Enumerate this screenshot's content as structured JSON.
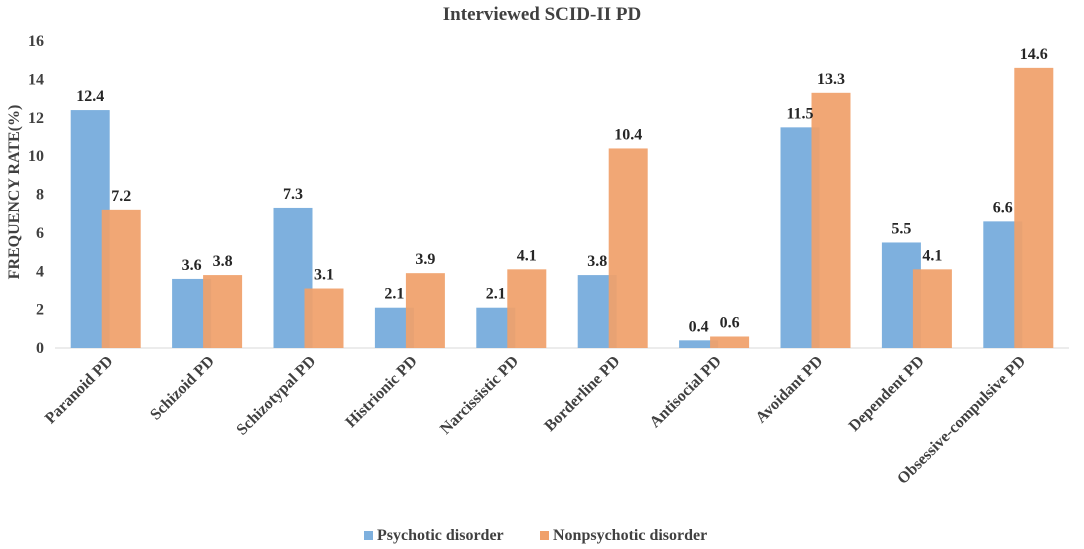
{
  "chart_data": {
    "type": "bar",
    "title": "Interviewed SCID-II PD",
    "xlabel": "",
    "ylabel": "FREQUENCY RATE(%)",
    "ylim": [
      0,
      16
    ],
    "yticks": [
      0,
      2,
      4,
      6,
      8,
      10,
      12,
      14,
      16
    ],
    "ytick_labels": [
      "0",
      "2",
      "4",
      "6",
      "8",
      "10",
      "12",
      "14",
      "16"
    ],
    "grid": false,
    "legend_position": "bottom-center",
    "categories": [
      "Paranoid PD",
      "Schizoid PD",
      "Schizotypal PD",
      "Histrionic PD",
      "Narcissistic PD",
      "Borderline PD",
      "Antisocial PD",
      "Avoidant PD",
      "Dependent PD",
      "Obsessive-compulsive PD"
    ],
    "series": [
      {
        "name": "Psychotic disorder",
        "color": "#7EB0DE",
        "values": [
          12.4,
          3.6,
          7.3,
          2.1,
          2.1,
          3.8,
          0.4,
          11.5,
          5.5,
          6.6
        ],
        "value_labels": [
          "12.4",
          "3.6",
          "7.3",
          "2.1",
          "2.1",
          "3.8",
          "0.4",
          "11.5",
          "5.5",
          "6.6"
        ]
      },
      {
        "name": "Nonpsychotic disorder",
        "color": "#F0A06A",
        "values": [
          7.2,
          3.8,
          3.1,
          3.9,
          4.1,
          10.4,
          0.6,
          13.3,
          4.1,
          14.6
        ],
        "value_labels": [
          "7.2",
          "3.8",
          "3.1",
          "3.9",
          "4.1",
          "10.4",
          "0.6",
          "13.3",
          "4.1",
          "14.6"
        ]
      }
    ]
  }
}
